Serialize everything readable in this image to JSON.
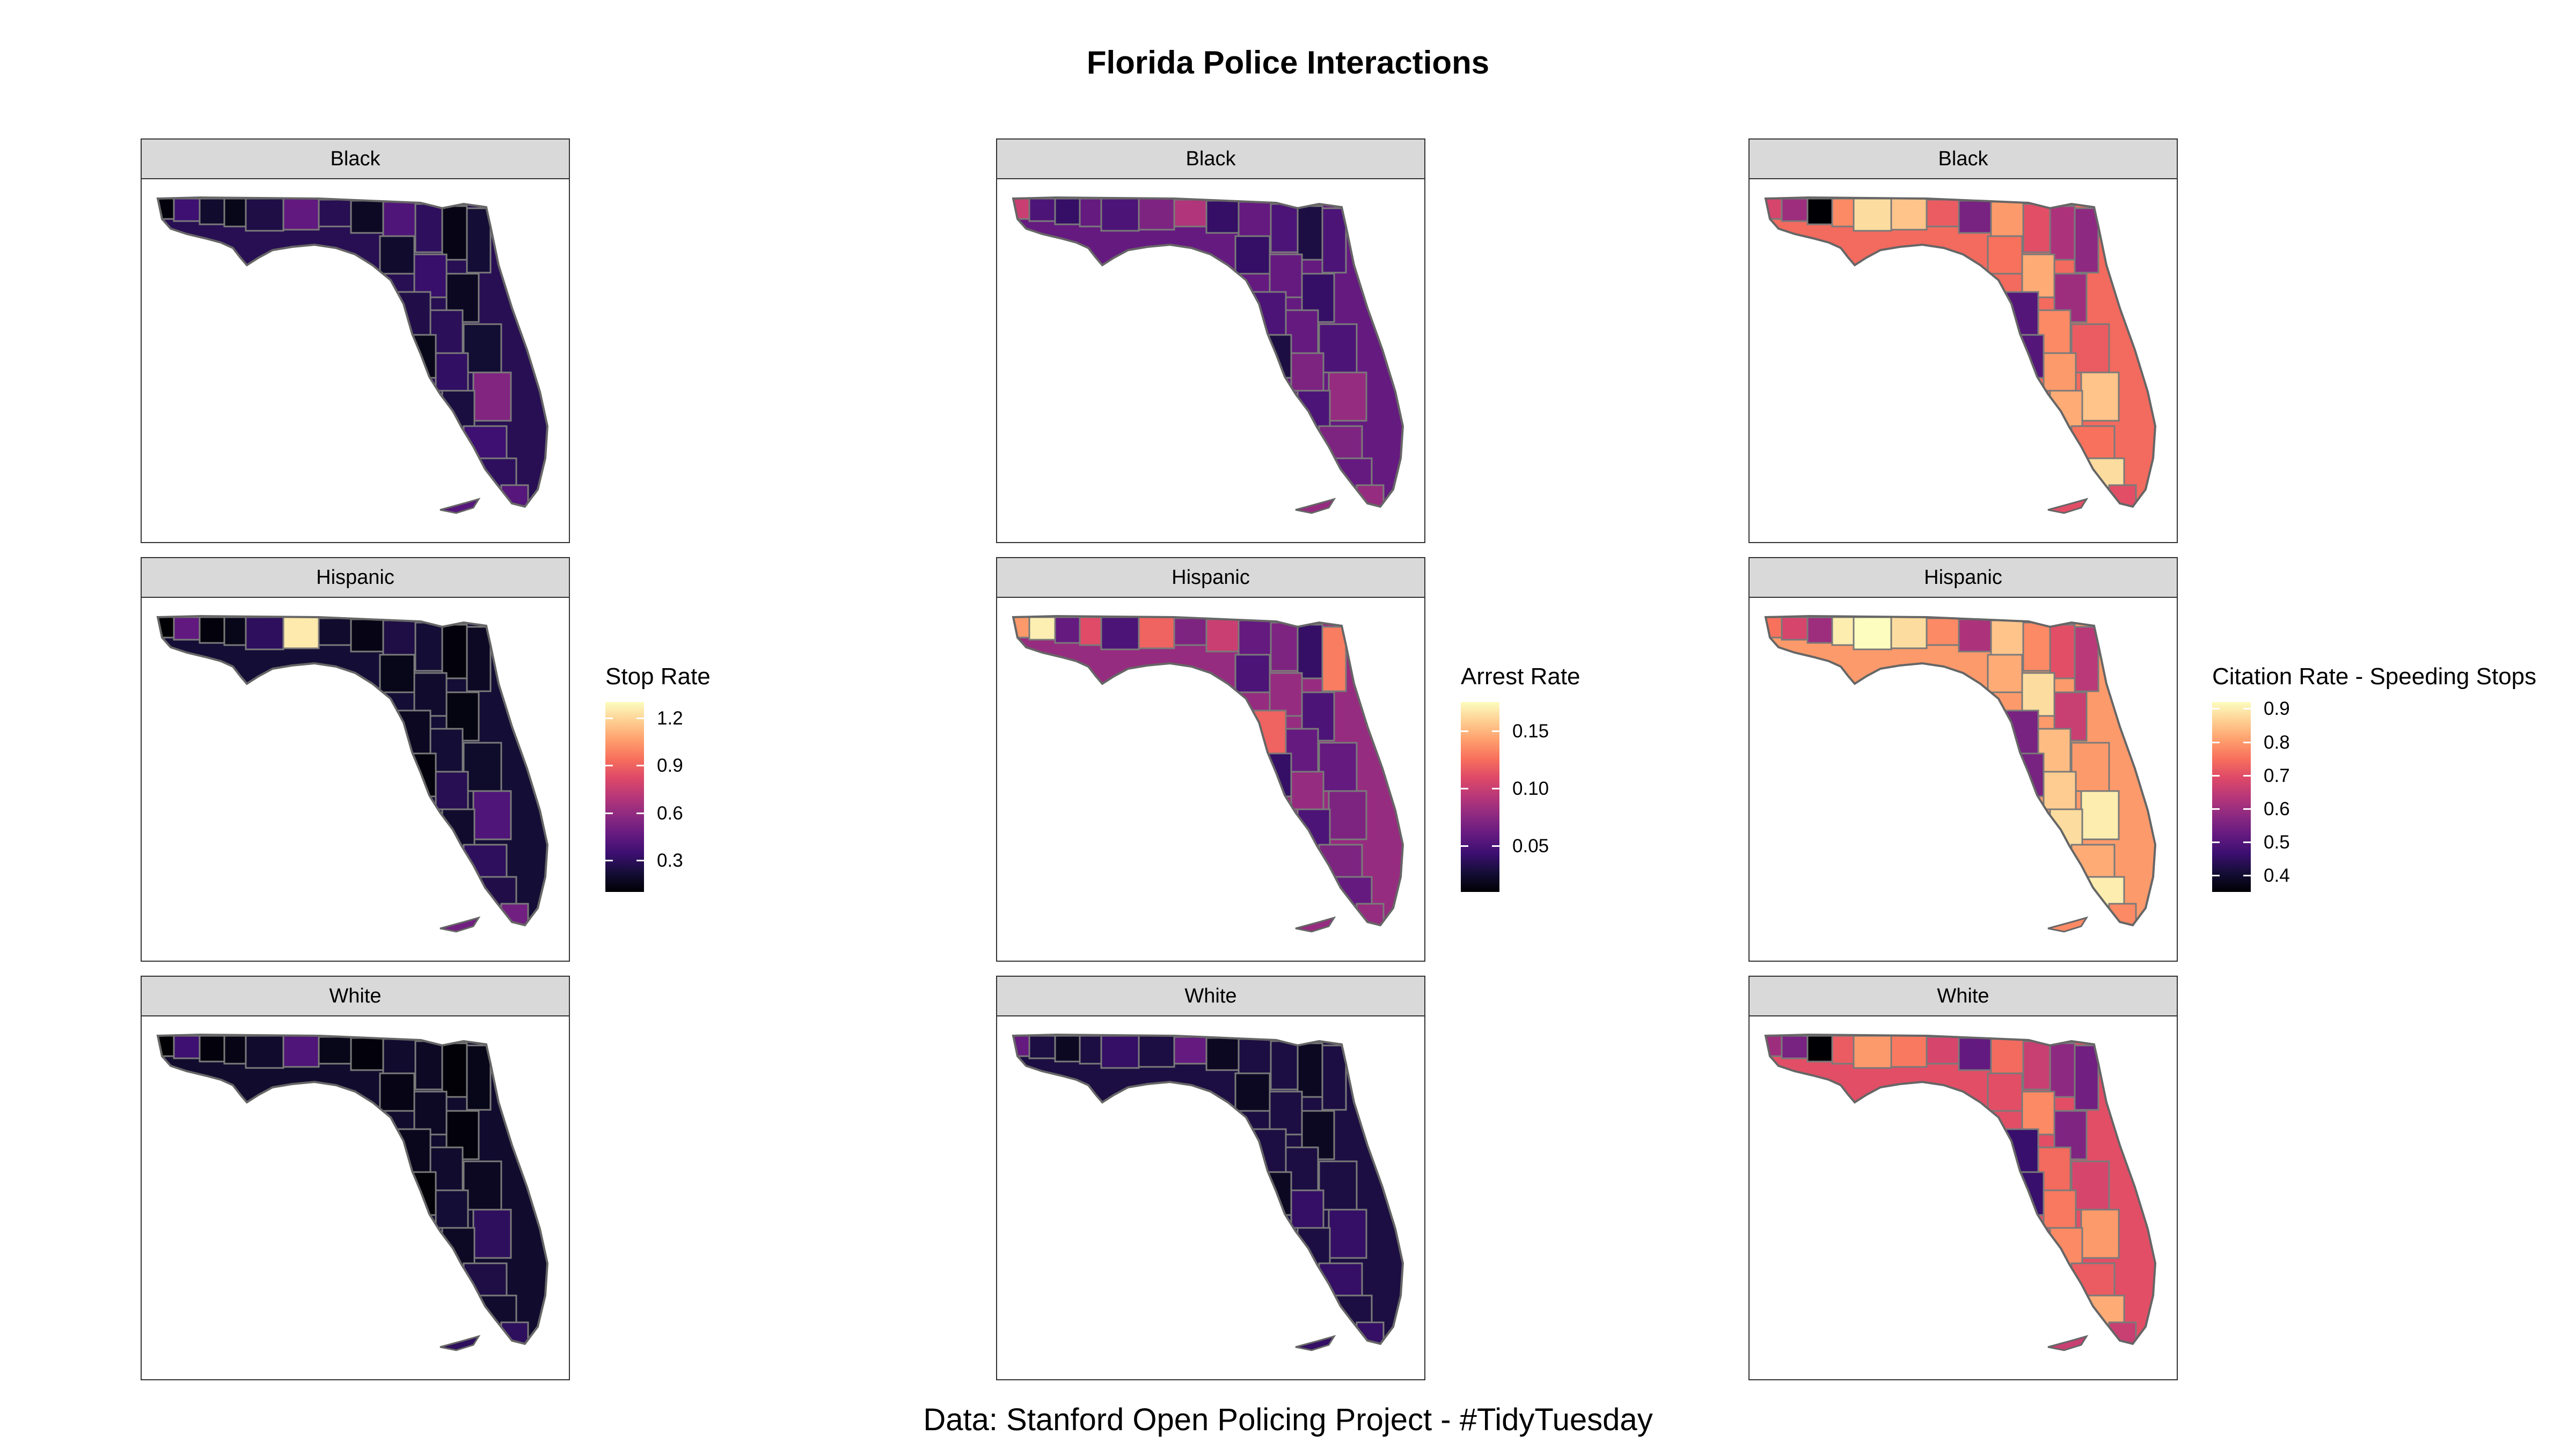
{
  "title": "Florida Police Interactions",
  "caption": "Data: Stanford Open Policing Project - #TidyTuesday",
  "palette": [
    "#000004",
    "#140e36",
    "#3b0f70",
    "#641a80",
    "#8c2981",
    "#b73779",
    "#de4968",
    "#f7705c",
    "#fe9f6d",
    "#fecf92",
    "#fcfdbf"
  ],
  "facets": [
    "Black",
    "Hispanic",
    "White"
  ],
  "chart_data": [
    {
      "type": "choropleth",
      "name": "Stop Rate",
      "legend": {
        "title": "Stop Rate",
        "ticks": [
          "0.3",
          "0.6",
          "0.9",
          "1.2"
        ],
        "tick_values": [
          0.3,
          0.6,
          0.9,
          1.2
        ],
        "range": [
          0.1,
          1.3
        ]
      },
      "facets": [
        {
          "label": "Black",
          "mean_value": 0.28,
          "values": [
            0.12,
            0.35,
            0.2,
            0.15,
            0.25,
            0.45,
            0.28,
            0.18,
            0.4,
            0.3,
            0.14,
            0.22,
            0.2,
            0.33,
            0.17,
            0.26,
            0.29,
            0.21,
            0.15,
            0.31,
            0.55,
            0.24,
            0.35,
            0.3,
            0.42
          ]
        },
        {
          "label": "Hispanic",
          "mean_value": 0.22,
          "values": [
            0.1,
            0.45,
            0.12,
            0.15,
            0.3,
            1.25,
            0.2,
            0.14,
            0.25,
            0.22,
            0.12,
            0.18,
            0.15,
            0.2,
            0.13,
            0.17,
            0.22,
            0.19,
            0.12,
            0.28,
            0.4,
            0.2,
            0.3,
            0.26,
            0.5
          ]
        },
        {
          "label": "White",
          "mean_value": 0.2,
          "values": [
            0.1,
            0.35,
            0.12,
            0.14,
            0.2,
            0.4,
            0.15,
            0.12,
            0.2,
            0.18,
            0.11,
            0.15,
            0.14,
            0.18,
            0.12,
            0.16,
            0.2,
            0.17,
            0.11,
            0.22,
            0.3,
            0.18,
            0.25,
            0.2,
            0.3
          ]
        }
      ]
    },
    {
      "type": "choropleth",
      "name": "Arrest Rate",
      "legend": {
        "title": "Arrest Rate",
        "ticks": [
          "0.05",
          "0.10",
          "0.15"
        ],
        "tick_values": [
          0.05,
          0.1,
          0.15
        ],
        "range": [
          0.01,
          0.175
        ]
      },
      "facets": [
        {
          "label": "Black",
          "mean_value": 0.06,
          "values": [
            0.1,
            0.05,
            0.04,
            0.06,
            0.05,
            0.07,
            0.09,
            0.04,
            0.06,
            0.05,
            0.03,
            0.05,
            0.04,
            0.06,
            0.04,
            0.05,
            0.06,
            0.05,
            0.03,
            0.07,
            0.08,
            0.05,
            0.07,
            0.06,
            0.08
          ]
        },
        {
          "label": "Hispanic",
          "mean_value": 0.08,
          "values": [
            0.14,
            0.17,
            0.06,
            0.11,
            0.05,
            0.12,
            0.07,
            0.1,
            0.06,
            0.07,
            0.04,
            0.13,
            0.05,
            0.08,
            0.05,
            0.12,
            0.06,
            0.06,
            0.04,
            0.08,
            0.07,
            0.05,
            0.07,
            0.06,
            0.08
          ]
        },
        {
          "label": "White",
          "mean_value": 0.03,
          "values": [
            0.06,
            0.03,
            0.02,
            0.03,
            0.04,
            0.03,
            0.06,
            0.02,
            0.03,
            0.03,
            0.02,
            0.03,
            0.02,
            0.03,
            0.02,
            0.03,
            0.03,
            0.03,
            0.02,
            0.04,
            0.04,
            0.03,
            0.04,
            0.03,
            0.04
          ]
        }
      ]
    },
    {
      "type": "choropleth",
      "name": "Citation Rate - Speeding Stops",
      "legend": {
        "title": "Citation Rate - Speeding Stops",
        "ticks": [
          "0.4",
          "0.5",
          "0.6",
          "0.7",
          "0.8",
          "0.9"
        ],
        "tick_values": [
          0.4,
          0.5,
          0.6,
          0.7,
          0.8,
          0.9
        ],
        "range": [
          0.35,
          0.92
        ]
      },
      "facets": [
        {
          "label": "Black",
          "mean_value": 0.74,
          "values": [
            0.68,
            0.6,
            0.35,
            0.78,
            0.88,
            0.85,
            0.72,
            0.55,
            0.8,
            0.7,
            0.62,
            0.58,
            0.75,
            0.82,
            0.6,
            0.5,
            0.78,
            0.72,
            0.5,
            0.8,
            0.85,
            0.82,
            0.75,
            0.88,
            0.7
          ]
        },
        {
          "label": "Hispanic",
          "mean_value": 0.8,
          "values": [
            0.75,
            0.68,
            0.6,
            0.9,
            0.92,
            0.88,
            0.78,
            0.62,
            0.85,
            0.78,
            0.7,
            0.64,
            0.82,
            0.88,
            0.66,
            0.55,
            0.84,
            0.8,
            0.55,
            0.86,
            0.9,
            0.88,
            0.82,
            0.9,
            0.78
          ]
        },
        {
          "label": "White",
          "mean_value": 0.7,
          "values": [
            0.6,
            0.55,
            0.33,
            0.72,
            0.8,
            0.76,
            0.68,
            0.52,
            0.74,
            0.66,
            0.58,
            0.54,
            0.7,
            0.78,
            0.56,
            0.46,
            0.74,
            0.68,
            0.46,
            0.76,
            0.8,
            0.78,
            0.72,
            0.82,
            0.66
          ]
        }
      ]
    }
  ]
}
